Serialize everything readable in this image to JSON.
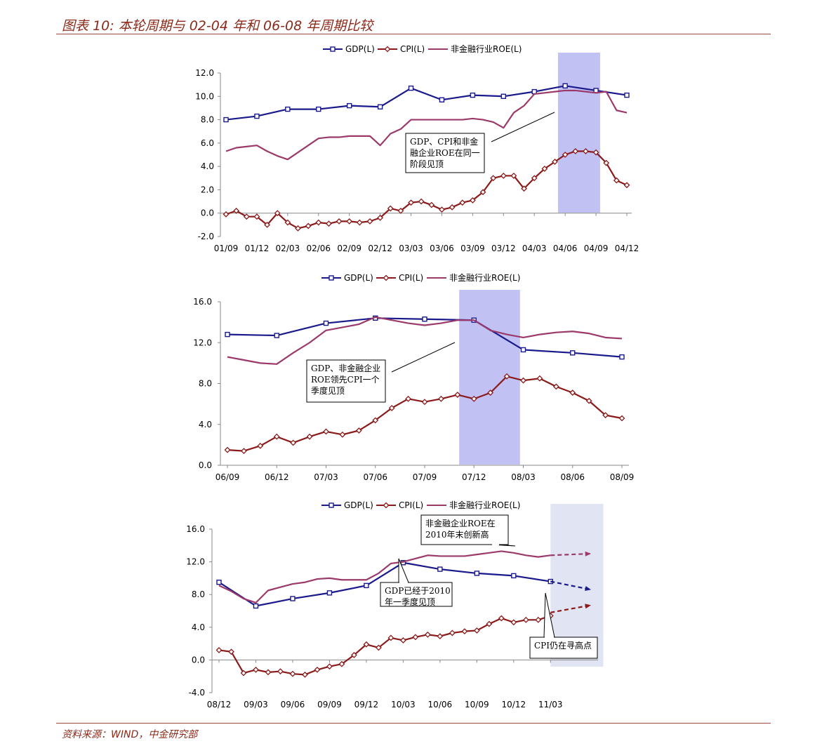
{
  "header": {
    "title": "图表 10: 本轮周期与 02-04 年和 06-08 年周期比较"
  },
  "footer": {
    "source": "资料来源：WIND，中金研究部"
  },
  "colors": {
    "gdp": "#1A1A8C",
    "cpi": "#8B1A1A",
    "roe": "#9B3A6A",
    "shade": "#B6B6F2",
    "title": "#8B2A1A"
  },
  "chart_data": [
    {
      "type": "line",
      "legend": [
        "GDP(L)",
        "CPI(L)",
        "非金融行业ROE(L)"
      ],
      "ylim": [
        -2,
        12
      ],
      "yticks": [
        "12.0",
        "10.0",
        "8.0",
        "6.0",
        "4.0",
        "2.0",
        "0.0",
        "-2.0"
      ],
      "xticks": [
        "01/09",
        "01/12",
        "02/03",
        "02/06",
        "02/09",
        "02/12",
        "03/03",
        "03/06",
        "03/09",
        "03/12",
        "04/03",
        "04/06",
        "04/09",
        "04/12"
      ],
      "shade_x": [
        32.3,
        36.4
      ],
      "annotation": {
        "lines": [
          "GDP、CPI和非金",
          "融企业ROE在同一",
          "阶段见顶"
        ]
      },
      "series": [
        {
          "name": "GDP(L)",
          "x": [
            0,
            3,
            6,
            9,
            12,
            15,
            18,
            21,
            24,
            27,
            30,
            33,
            36,
            39
          ],
          "values": [
            8.0,
            8.3,
            8.9,
            8.9,
            9.2,
            9.1,
            10.7,
            9.7,
            10.1,
            10.0,
            10.4,
            10.9,
            10.5,
            10.1
          ]
        },
        {
          "name": "CPI(L)",
          "x": [
            0,
            1,
            2,
            3,
            4,
            5,
            6,
            7,
            8,
            9,
            10,
            11,
            12,
            13,
            14,
            15,
            16,
            17,
            18,
            19,
            20,
            21,
            22,
            23,
            24,
            25,
            26,
            27,
            28,
            29,
            30,
            31,
            32,
            33,
            34,
            35,
            36,
            37,
            38,
            39
          ],
          "values": [
            -0.1,
            0.2,
            -0.3,
            -0.3,
            -1.0,
            0.0,
            -0.8,
            -1.3,
            -1.1,
            -0.8,
            -0.9,
            -0.7,
            -0.7,
            -0.8,
            -0.7,
            -0.4,
            0.4,
            0.2,
            0.9,
            1.0,
            0.7,
            0.3,
            0.5,
            0.9,
            1.1,
            1.8,
            3.0,
            3.2,
            3.2,
            2.1,
            3.0,
            3.8,
            4.4,
            5.0,
            5.3,
            5.3,
            5.2,
            4.3,
            2.8,
            2.4
          ]
        },
        {
          "name": "非金融行业ROE(L)",
          "x": [
            0,
            1,
            2,
            3,
            4,
            5,
            6,
            7,
            8,
            9,
            10,
            11,
            12,
            13,
            14,
            15,
            16,
            17,
            18,
            19,
            20,
            21,
            22,
            23,
            24,
            25,
            26,
            27,
            28,
            29,
            30,
            31,
            32,
            33,
            34,
            35,
            36,
            37,
            38,
            39
          ],
          "values": [
            5.3,
            5.6,
            5.7,
            5.8,
            5.3,
            4.9,
            4.6,
            5.2,
            5.8,
            6.4,
            6.5,
            6.5,
            6.6,
            6.6,
            6.6,
            5.8,
            6.8,
            7.2,
            8.0,
            8.0,
            8.0,
            8.0,
            8.0,
            8.0,
            8.1,
            8.0,
            7.8,
            7.3,
            8.6,
            9.2,
            10.2,
            10.3,
            10.4,
            10.5,
            10.5,
            10.4,
            10.3,
            10.4,
            8.8,
            8.6
          ]
        }
      ]
    },
    {
      "type": "line",
      "legend": [
        "GDP(L)",
        "CPI(L)",
        "非金融行业ROE(L)"
      ],
      "ylim": [
        0,
        16
      ],
      "yticks": [
        "16.0",
        "12.0",
        "8.0",
        "4.0",
        "0.0"
      ],
      "xticks": [
        "06/09",
        "06/12",
        "07/03",
        "07/06",
        "07/09",
        "07/12",
        "08/03",
        "08/06",
        "08/09"
      ],
      "shade_x": [
        14.1,
        17.8
      ],
      "annotation": {
        "lines": [
          "GDP、非金融企业",
          "ROE领先CPI一个",
          "季度见顶"
        ]
      },
      "series": [
        {
          "name": "GDP(L)",
          "x": [
            0,
            3,
            6,
            9,
            12,
            15,
            18,
            21,
            24
          ],
          "values": [
            12.8,
            12.7,
            13.9,
            14.4,
            14.3,
            14.2,
            11.3,
            11.0,
            10.6
          ]
        },
        {
          "name": "CPI(L)",
          "x": [
            0,
            1,
            2,
            3,
            4,
            5,
            6,
            7,
            8,
            9,
            10,
            11,
            12,
            13,
            14,
            15,
            16,
            17,
            18,
            19,
            20,
            21,
            22,
            23,
            24
          ],
          "values": [
            1.5,
            1.4,
            1.9,
            2.8,
            2.2,
            2.8,
            3.3,
            3.0,
            3.4,
            4.4,
            5.6,
            6.5,
            6.2,
            6.5,
            6.9,
            6.5,
            7.1,
            8.7,
            8.3,
            8.5,
            7.7,
            7.1,
            6.3,
            4.9,
            4.6
          ]
        },
        {
          "name": "非金融行业ROE(L)",
          "x": [
            0,
            1,
            2,
            3,
            4,
            5,
            6,
            7,
            8,
            9,
            10,
            11,
            12,
            13,
            14,
            15,
            16,
            17,
            18,
            19,
            20,
            21,
            22,
            23,
            24
          ],
          "values": [
            10.6,
            10.3,
            10.0,
            9.9,
            11.0,
            12.0,
            13.2,
            13.5,
            13.8,
            14.5,
            14.2,
            13.9,
            13.7,
            13.9,
            14.2,
            14.2,
            13.2,
            12.8,
            12.5,
            12.8,
            13.0,
            13.1,
            12.9,
            12.5,
            12.4
          ]
        }
      ]
    },
    {
      "type": "line",
      "legend": [
        "GDP(L)",
        "CPI(L)",
        "非金融行业ROE(L)"
      ],
      "ylim": [
        -4,
        16
      ],
      "yticks": [
        "16.0",
        "12.0",
        "8.0",
        "4.0",
        "0.0",
        "-4.0"
      ],
      "xticks": [
        "08/12",
        "09/03",
        "09/06",
        "09/09",
        "09/12",
        "10/03",
        "10/06",
        "10/09",
        "10/12",
        "11/03"
      ],
      "shade_x": [
        27.0,
        31.3
      ],
      "annotations": [
        {
          "lines": [
            "非金融企业ROE在",
            "2010年末创新高"
          ]
        },
        {
          "lines": [
            "GDP已经于2010",
            "年一季度见顶"
          ]
        },
        {
          "lines": [
            "CPI仍在寻高点"
          ]
        }
      ],
      "series": [
        {
          "name": "GDP(L)",
          "x": [
            0,
            3,
            6,
            9,
            12,
            15,
            18,
            21,
            24,
            27
          ],
          "values": [
            9.5,
            6.6,
            7.5,
            8.2,
            9.1,
            11.9,
            11.1,
            10.6,
            10.3,
            9.6
          ]
        },
        {
          "name": "CPI(L)",
          "x": [
            0,
            1,
            2,
            3,
            4,
            5,
            6,
            7,
            8,
            9,
            10,
            11,
            12,
            13,
            14,
            15,
            16,
            17,
            18,
            19,
            20,
            21,
            22,
            23,
            24,
            25,
            26,
            27
          ],
          "values": [
            1.2,
            1.0,
            -1.6,
            -1.2,
            -1.5,
            -1.4,
            -1.7,
            -1.8,
            -1.2,
            -0.8,
            -0.5,
            0.6,
            1.9,
            1.5,
            2.7,
            2.4,
            2.8,
            3.1,
            2.9,
            3.3,
            3.5,
            3.6,
            4.4,
            5.1,
            4.6,
            4.9,
            4.9,
            5.4
          ]
        },
        {
          "name": "非金融行业ROE(L)",
          "x": [
            0,
            1,
            2,
            3,
            4,
            5,
            6,
            7,
            8,
            9,
            10,
            11,
            12,
            13,
            14,
            15,
            16,
            17,
            18,
            19,
            20,
            21,
            22,
            23,
            24,
            25,
            26,
            27
          ],
          "values": [
            9.1,
            8.4,
            7.5,
            7.0,
            8.5,
            8.9,
            9.3,
            9.5,
            9.9,
            10.0,
            9.8,
            9.8,
            9.8,
            10.6,
            11.8,
            12.0,
            12.4,
            12.8,
            12.7,
            12.7,
            12.7,
            12.9,
            13.1,
            13.3,
            13.1,
            12.8,
            12.6,
            12.8
          ]
        },
        {
          "name": "ROE-forecast",
          "x": [
            27,
            30.3
          ],
          "values": [
            12.8,
            13.0
          ]
        },
        {
          "name": "GDP-forecast",
          "x": [
            27,
            30.3
          ],
          "values": [
            9.6,
            8.6
          ]
        },
        {
          "name": "CPI-forecast",
          "x": [
            27,
            30.3
          ],
          "values": [
            5.8,
            6.7
          ]
        }
      ]
    }
  ]
}
